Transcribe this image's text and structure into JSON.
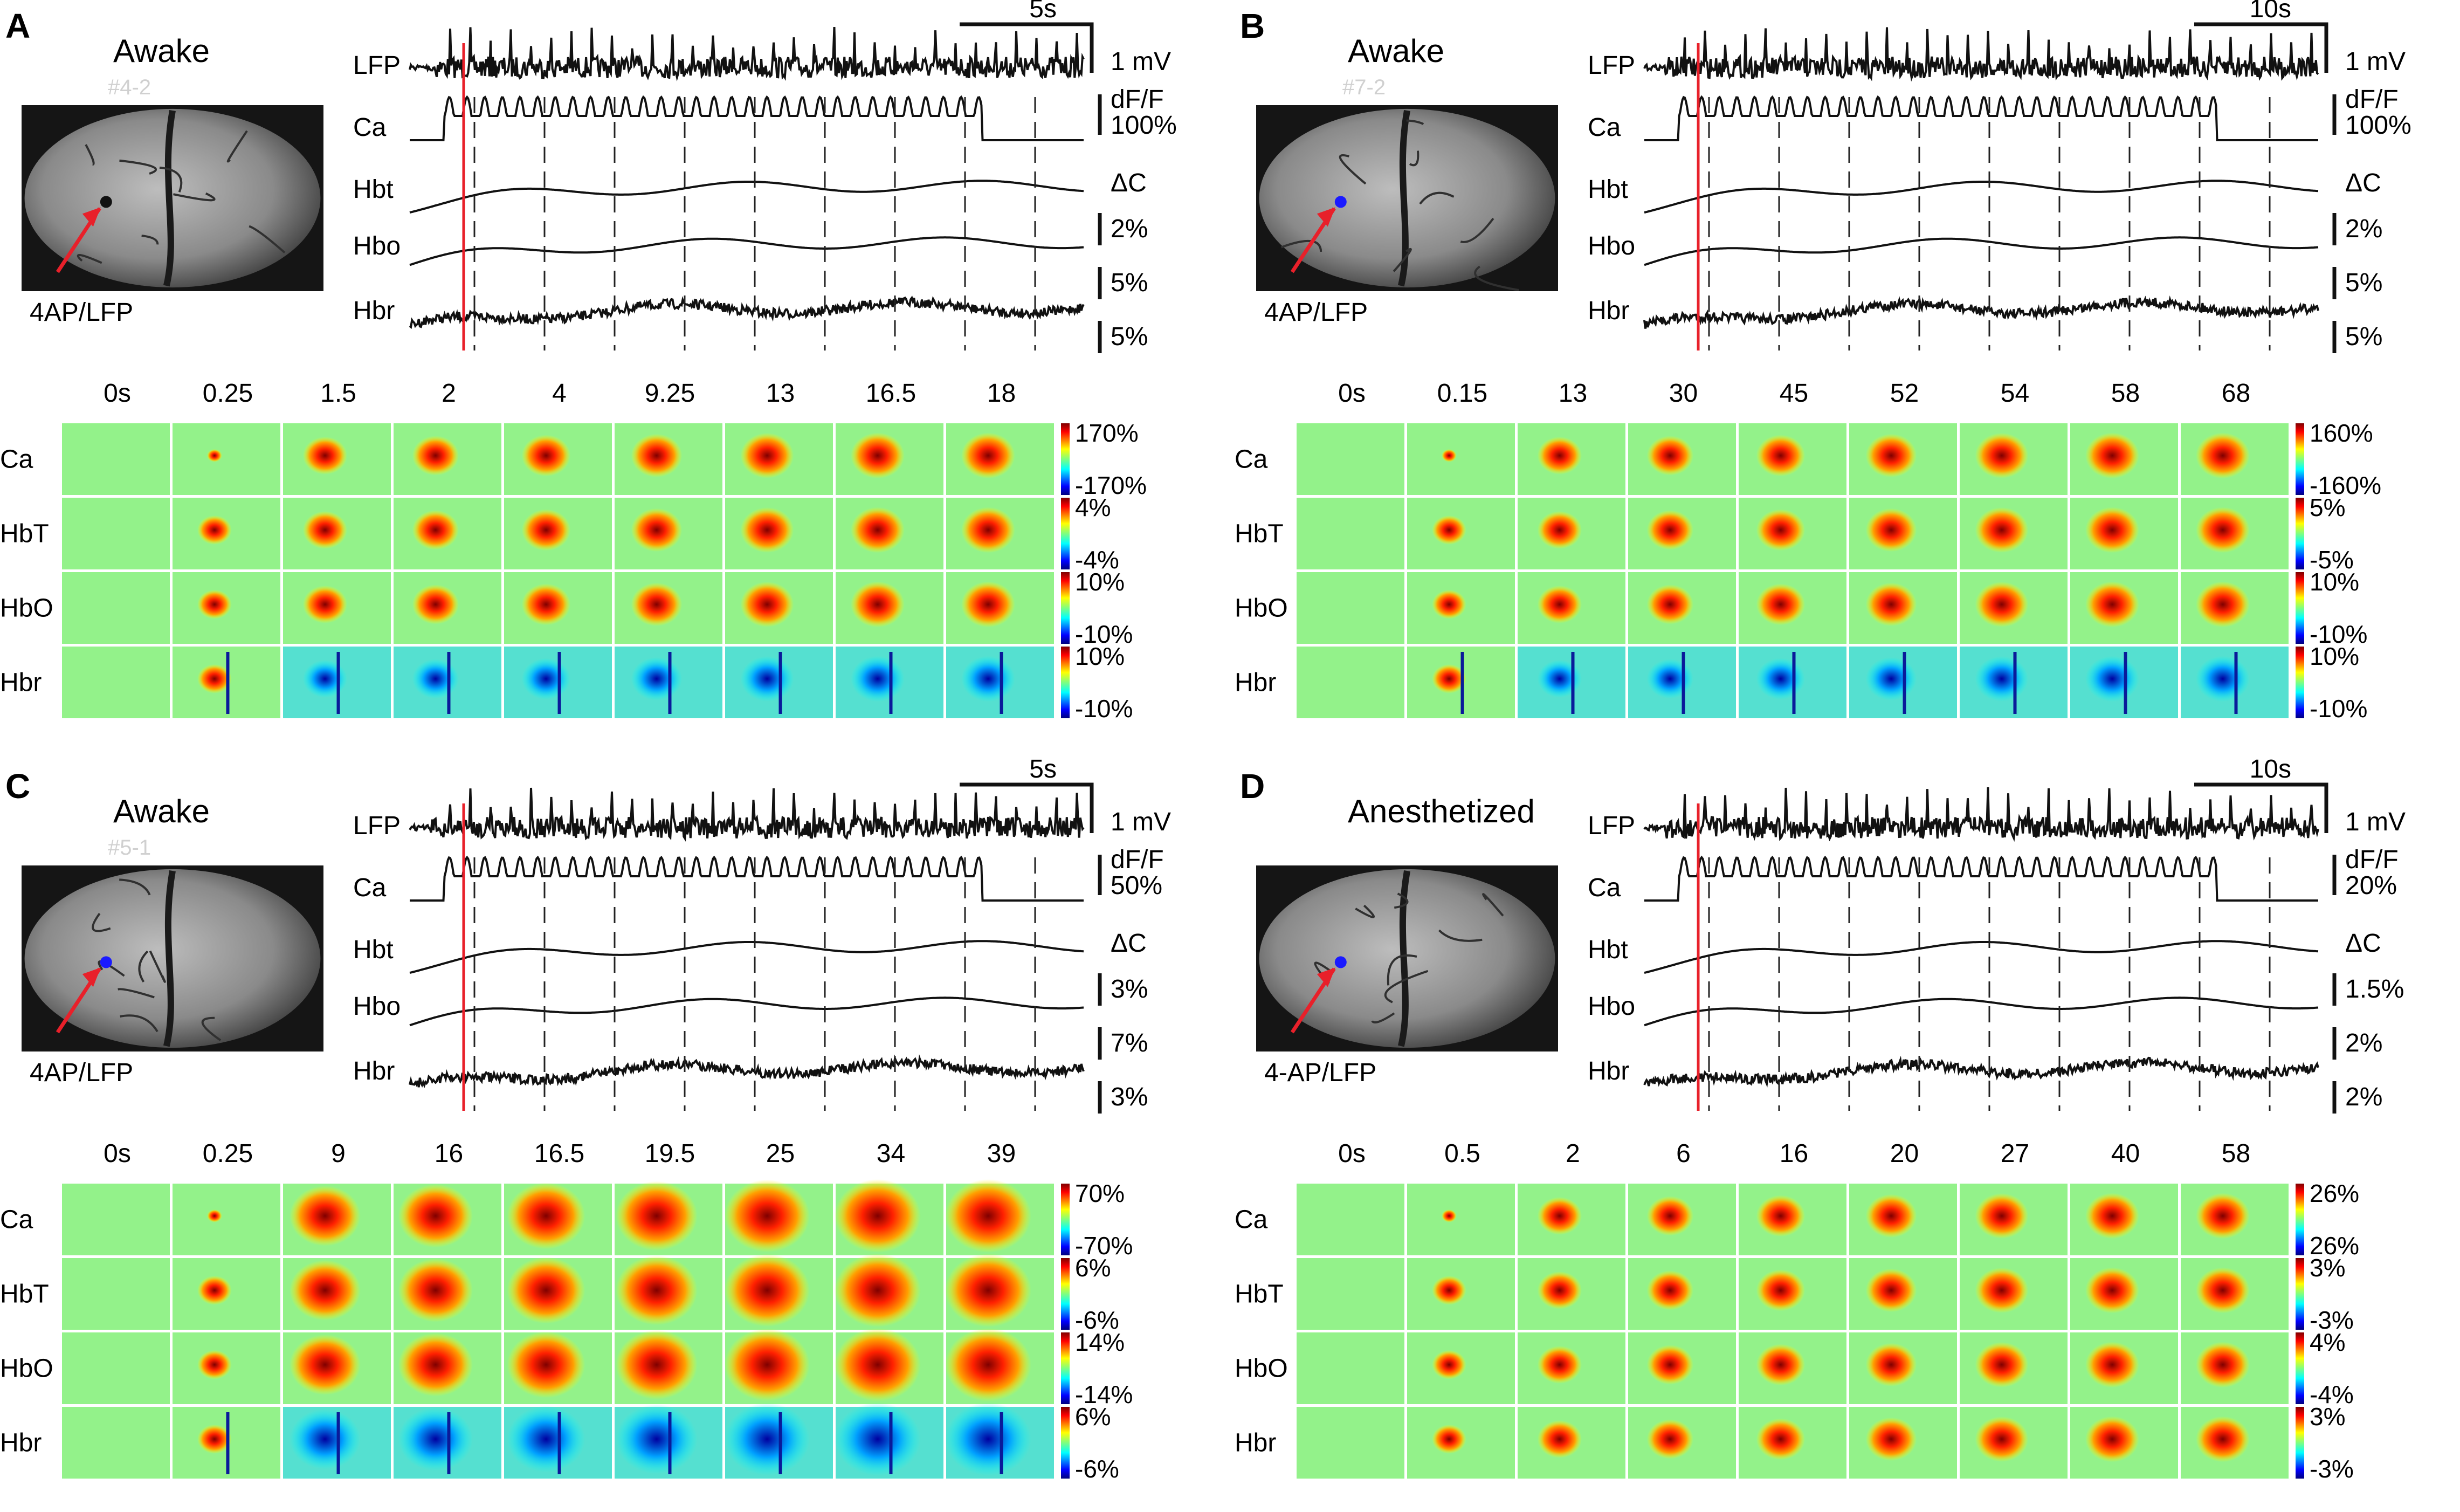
{
  "figure": {
    "panels": [
      {
        "letter": "A",
        "state": "Awake",
        "animal_id": "#4-2",
        "site_label": "4AP/LFP",
        "marker_color": "#111111",
        "trace_names": [
          "LFP",
          "Ca",
          "Hbt",
          "Hbo",
          "Hbr"
        ],
        "time_bar": "5s",
        "lfp_scale": "1 mV",
        "ca_scale": [
          "dF/F",
          "100%"
        ],
        "delta_c": "ΔC",
        "hb_scales": [
          "2%",
          "5%",
          "5%"
        ],
        "frame_times": [
          "0s",
          "0.25",
          "1.5",
          "2",
          "4",
          "9.25",
          "13",
          "16.5",
          "18"
        ],
        "map_rows": [
          "Ca",
          "HbT",
          "HbO",
          "Hbr"
        ],
        "colorbar_labels": [
          [
            "170%",
            "-170%"
          ],
          [
            "4%",
            "-4%"
          ],
          [
            "10%",
            "-10%"
          ],
          [
            "10%",
            "-10%"
          ]
        ]
      },
      {
        "letter": "B",
        "state": "Awake",
        "animal_id": "#7-2",
        "site_label": "4AP/LFP",
        "marker_color": "#1a1aff",
        "trace_names": [
          "LFP",
          "Ca",
          "Hbt",
          "Hbo",
          "Hbr"
        ],
        "time_bar": "10s",
        "lfp_scale": "1 mV",
        "ca_scale": [
          "dF/F",
          "100%"
        ],
        "delta_c": "ΔC",
        "hb_scales": [
          "2%",
          "5%",
          "5%"
        ],
        "frame_times": [
          "0s",
          "0.15",
          "13",
          "30",
          "45",
          "52",
          "54",
          "58",
          "68"
        ],
        "map_rows": [
          "Ca",
          "HbT",
          "HbO",
          "Hbr"
        ],
        "colorbar_labels": [
          [
            "160%",
            "-160%"
          ],
          [
            "5%",
            "-5%"
          ],
          [
            "10%",
            "-10%"
          ],
          [
            "10%",
            "-10%"
          ]
        ]
      },
      {
        "letter": "C",
        "state": "Awake",
        "animal_id": "#5-1",
        "site_label": "4AP/LFP",
        "marker_color": "#1a1aff",
        "trace_names": [
          "LFP",
          "Ca",
          "Hbt",
          "Hbo",
          "Hbr"
        ],
        "time_bar": "5s",
        "lfp_scale": "1 mV",
        "ca_scale": [
          "dF/F",
          "50%"
        ],
        "delta_c": "ΔC",
        "hb_scales": [
          "3%",
          "7%",
          "3%"
        ],
        "frame_times": [
          "0s",
          "0.25",
          "9",
          "16",
          "16.5",
          "19.5",
          "25",
          "34",
          "39"
        ],
        "map_rows": [
          "Ca",
          "HbT",
          "HbO",
          "Hbr"
        ],
        "colorbar_labels": [
          [
            "70%",
            "-70%"
          ],
          [
            "6%",
            "-6%"
          ],
          [
            "14%",
            "-14%"
          ],
          [
            "6%",
            "-6%"
          ]
        ]
      },
      {
        "letter": "D",
        "state": "Anesthetized",
        "animal_id": "",
        "site_label": "4-AP/LFP",
        "marker_color": "#1a1aff",
        "trace_names": [
          "LFP",
          "Ca",
          "Hbt",
          "Hbo",
          "Hbr"
        ],
        "time_bar": "10s",
        "lfp_scale": "1 mV",
        "ca_scale": [
          "dF/F",
          "20%"
        ],
        "delta_c": "ΔC",
        "hb_scales": [
          "1.5%",
          "2%",
          "2%"
        ],
        "frame_times": [
          "0s",
          "0.5",
          "2",
          "6",
          "16",
          "20",
          "27",
          "40",
          "58"
        ],
        "map_rows": [
          "Ca",
          "HbT",
          "HbO",
          "Hbr"
        ],
        "colorbar_labels": [
          [
            "26%",
            "26%"
          ],
          [
            "3%",
            "-3%"
          ],
          [
            "4%",
            "-4%"
          ],
          [
            "3%",
            "-3%"
          ]
        ]
      }
    ]
  }
}
